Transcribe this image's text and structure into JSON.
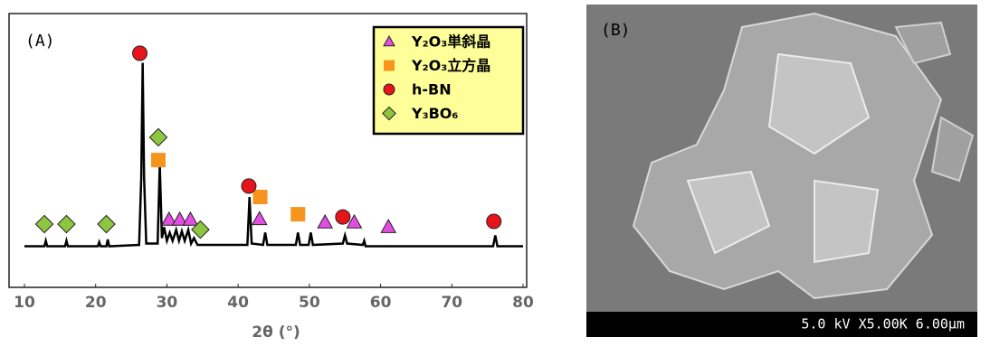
{
  "chart_data": {
    "type": "line",
    "annotation": "(A)",
    "xlabel": "2θ (°)",
    "xlim": [
      10,
      80
    ],
    "xticks": [
      10,
      20,
      30,
      40,
      50,
      60,
      70,
      80
    ],
    "ylim": [
      0,
      100
    ],
    "legend": "upper right",
    "series": [
      {
        "color": "#000000",
        "x": [
          10,
          12.8,
          13.0,
          13.2,
          15.7,
          15.9,
          16.1,
          20.3,
          20.5,
          20.7,
          21.5,
          21.7,
          21.9,
          26.1,
          26.4,
          26.6,
          26.8,
          27.1,
          28.7,
          29.0,
          29.3,
          29.6,
          30.0,
          30.4,
          30.8,
          31.3,
          31.7,
          32.1,
          32.5,
          33.0,
          33.4,
          33.8,
          34.3,
          41.3,
          41.6,
          41.9,
          43.5,
          43.8,
          44.1,
          48.1,
          48.4,
          48.7,
          49.9,
          50.2,
          50.5,
          54.7,
          55.0,
          55.3,
          57.5,
          57.7,
          57.9,
          75.8,
          76.1,
          76.4,
          80
        ],
        "values": [
          15,
          15,
          17,
          15,
          15,
          17,
          15,
          15,
          16.5,
          15,
          15,
          17.5,
          15,
          15.5,
          40,
          82,
          40,
          16,
          16,
          45,
          18,
          22,
          17,
          20,
          17,
          21,
          17,
          20.5,
          17,
          21,
          16,
          18,
          15.5,
          15.5,
          33,
          16,
          15.5,
          20,
          15.5,
          15.5,
          20,
          15.5,
          15.5,
          20,
          15.5,
          16,
          19,
          16,
          15.5,
          17,
          15,
          15,
          19,
          15,
          15
        ]
      },
      {
        "name": "Y₂O₃単斜晶",
        "color": "#e44ce4",
        "marker": "triangle",
        "x": [
          30.3,
          31.8,
          33.3,
          43.0,
          52.2,
          56.3,
          61.1
        ],
        "values": [
          24.8,
          24.8,
          24.8,
          25,
          23.8,
          23.8,
          22.1
        ]
      },
      {
        "name": "Y₂O₃立方晶",
        "color": "#f7941d",
        "marker": "square",
        "x": [
          28.8,
          43.1,
          48.4
        ],
        "values": [
          46.5,
          33,
          26.7
        ]
      },
      {
        "name": "h-BN",
        "color": "#e8141c",
        "marker": "circle",
        "x": [
          26.2,
          41.5,
          54.7,
          75.9
        ],
        "values": [
          85.5,
          37,
          25.7,
          24.1
        ]
      },
      {
        "name": "Y₃BO₆",
        "color": "#8dc63f",
        "marker": "diamond",
        "x": [
          12.8,
          15.9,
          21.5,
          28.8,
          34.7
        ],
        "values": [
          23.1,
          23.1,
          23.1,
          54.8,
          21.1
        ]
      }
    ]
  },
  "image": {
    "label": "(B)",
    "scale_text": "5.0 kV X5.00K 6.00μm"
  }
}
